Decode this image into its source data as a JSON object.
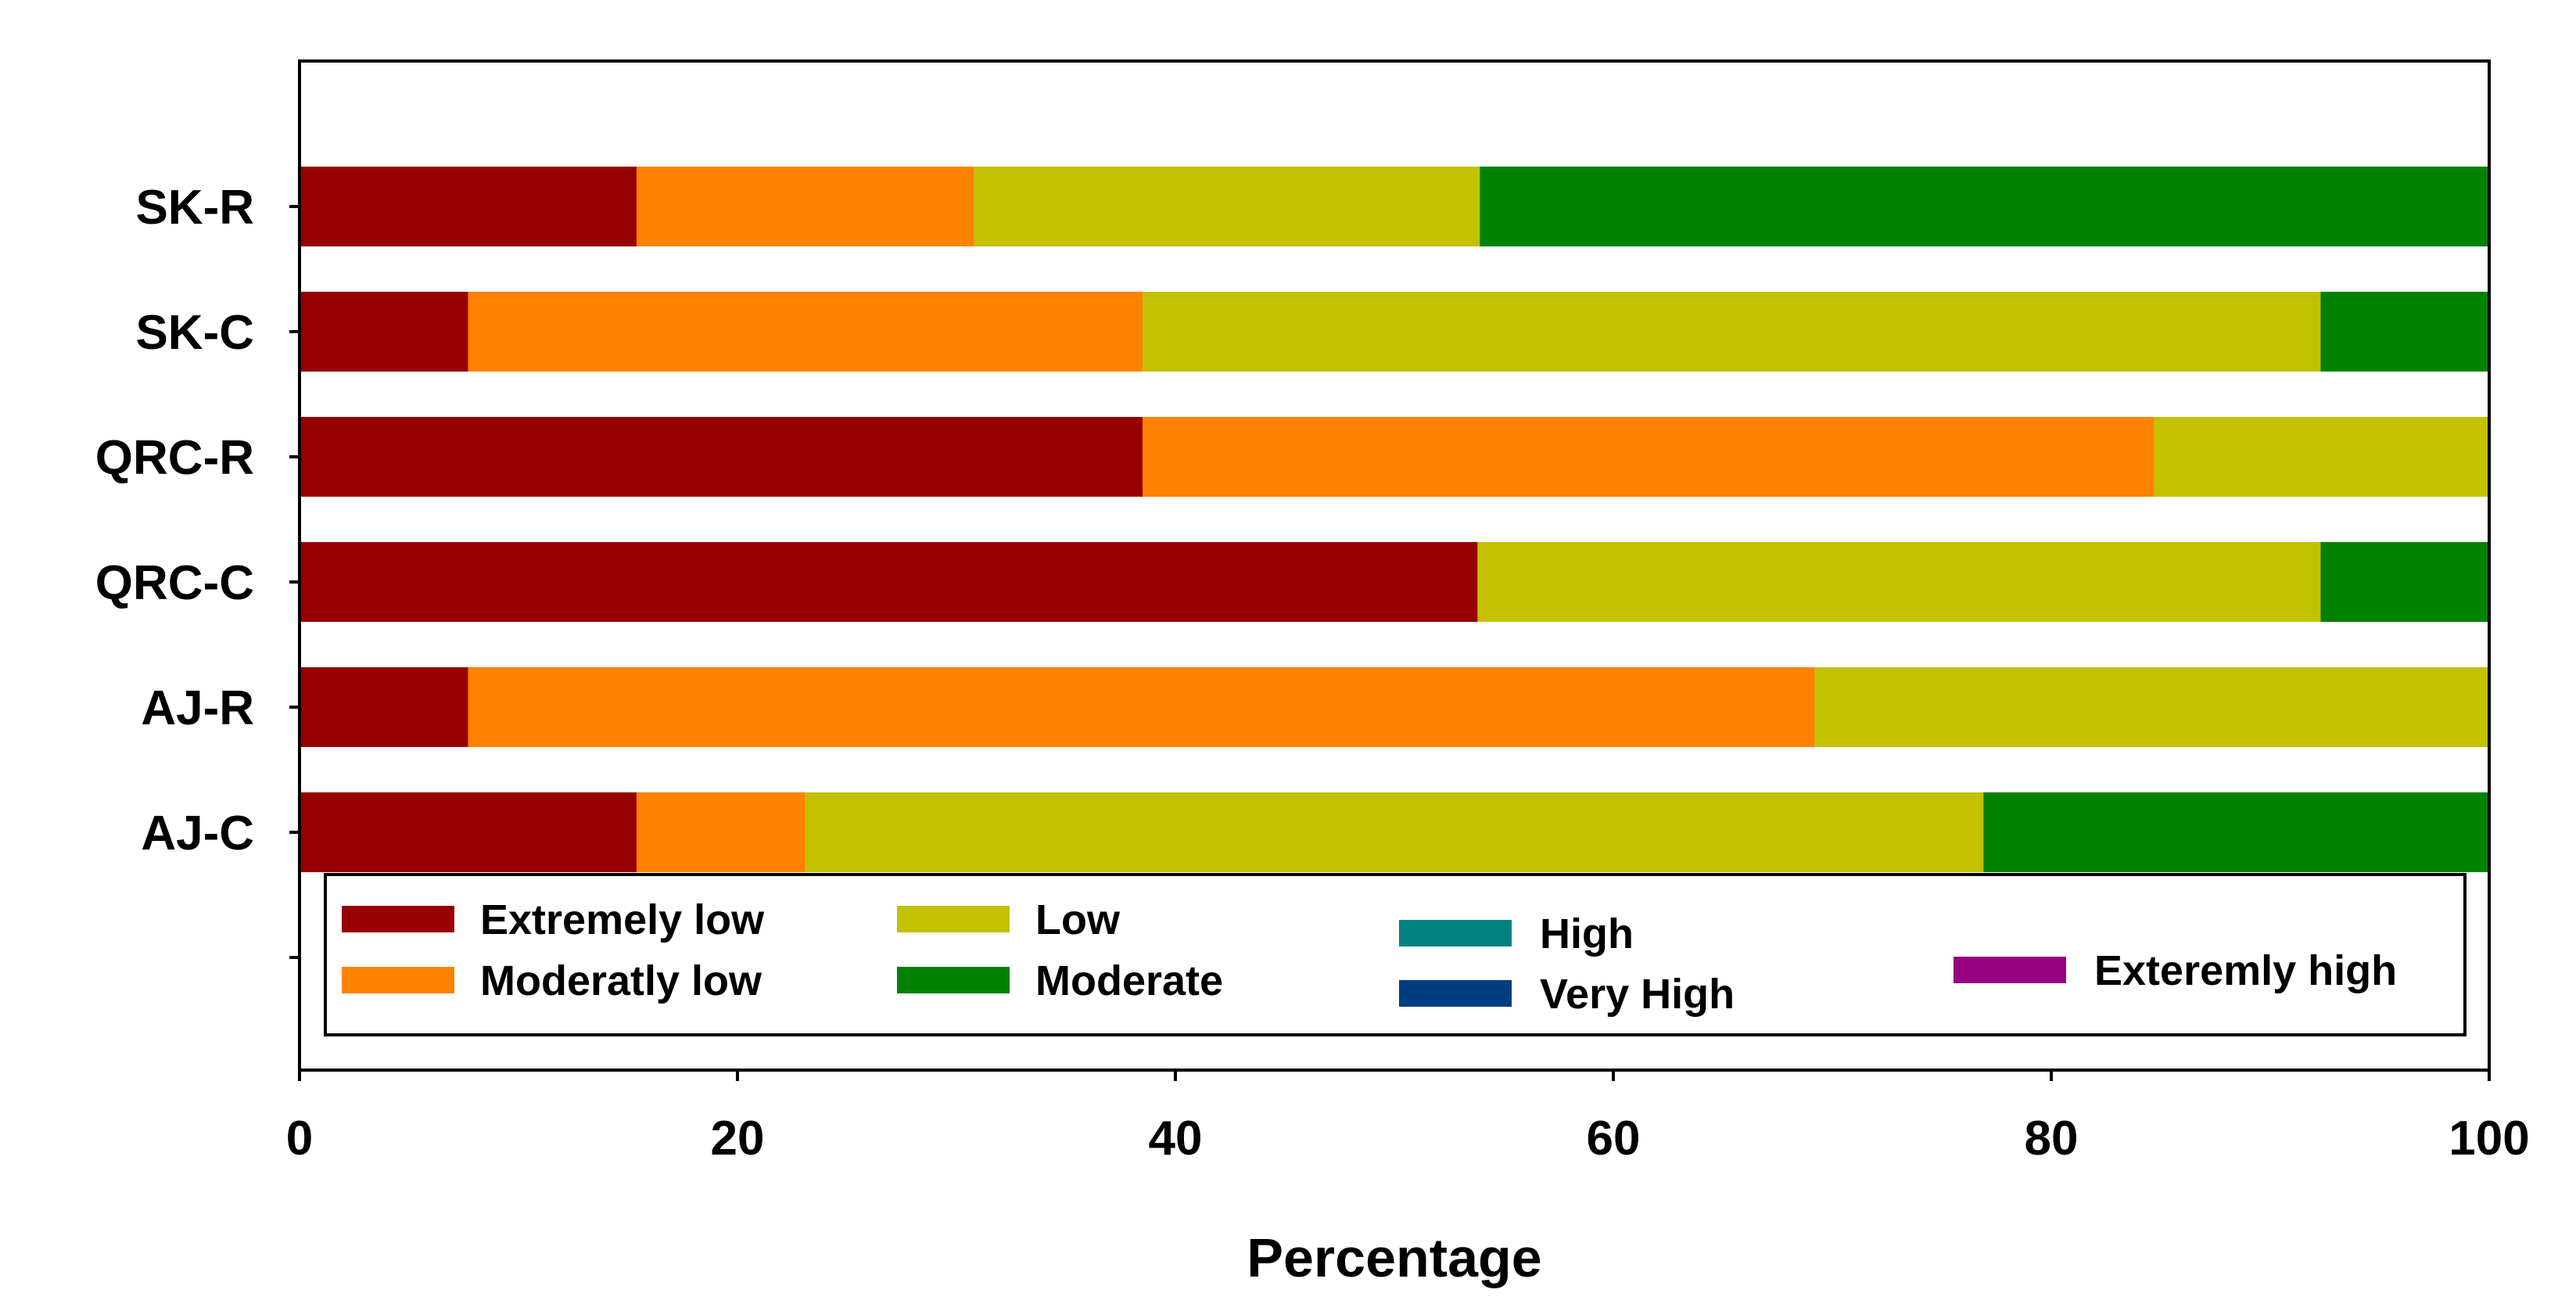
{
  "chart_data": {
    "type": "bar",
    "orientation": "horizontal",
    "stacked": true,
    "title": "",
    "xlabel": "Percentage",
    "ylabel": "",
    "xlim": [
      0,
      100
    ],
    "xticks": [
      "0",
      "20",
      "40",
      "60",
      "80",
      "100"
    ],
    "categories": [
      "SK-R",
      "SK-C",
      "QRC-R",
      "QRC-C",
      "AJ-R",
      "AJ-C"
    ],
    "series": [
      {
        "name": "Extremely low",
        "color": "#960000",
        "values": [
          15.4,
          7.7,
          38.5,
          53.8,
          7.7,
          15.4
        ]
      },
      {
        "name": "Moderatly low",
        "color": "#FF8200",
        "values": [
          15.4,
          30.8,
          46.2,
          0,
          61.5,
          7.7
        ]
      },
      {
        "name": "Low",
        "color": "#C2C200",
        "values": [
          23.1,
          53.8,
          15.3,
          38.5,
          30.8,
          53.8
        ]
      },
      {
        "name": "Moderate",
        "color": "#008200",
        "values": [
          46.1,
          7.7,
          0,
          7.7,
          0,
          23.1
        ]
      },
      {
        "name": "High",
        "color": "#00827F",
        "values": [
          0,
          0,
          0,
          0,
          0,
          0
        ]
      },
      {
        "name": "Very High",
        "color": "#003D80",
        "values": [
          0,
          0,
          0,
          0,
          0,
          0
        ]
      },
      {
        "name": "Exteremly high",
        "color": "#960082",
        "values": [
          0,
          0,
          0,
          0,
          0,
          0
        ]
      }
    ],
    "legend_position": "bottom-inside",
    "grid": false
  }
}
